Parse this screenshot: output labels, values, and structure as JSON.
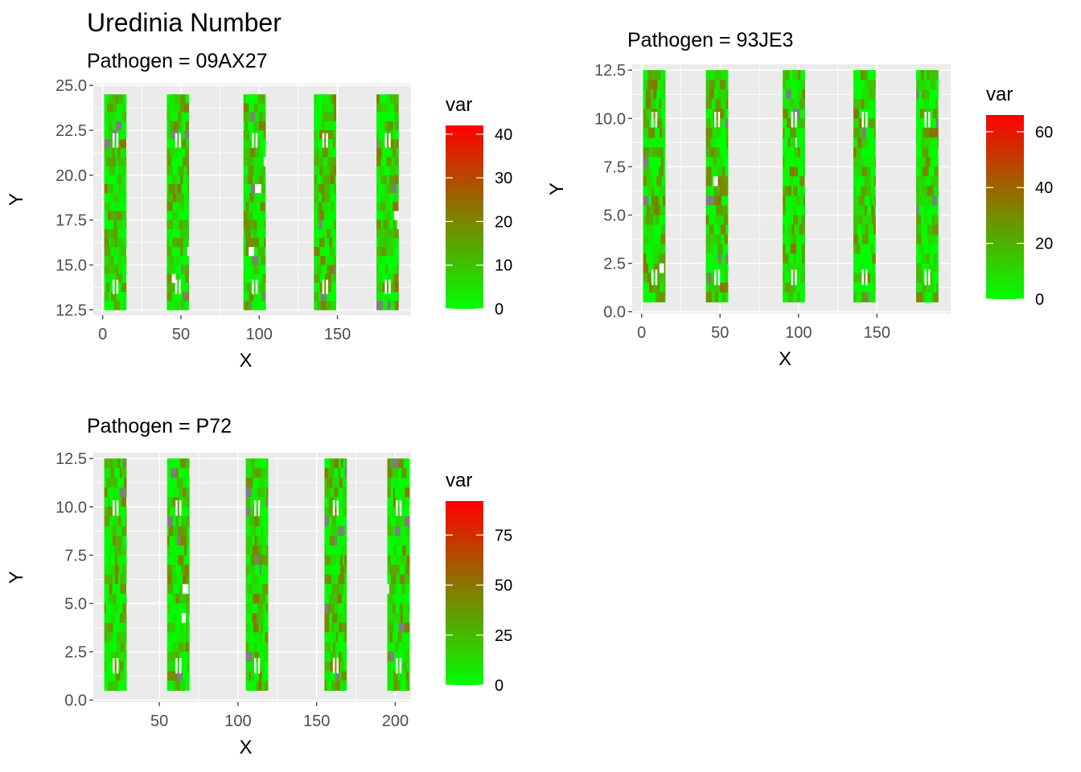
{
  "title": "Uredinia Number",
  "panel_bg": "#EBEBEB",
  "grid_color": "#FFFFFF",
  "tick_color": "#4D4D4D",
  "missing_color": "#7F7F7F",
  "gradient": [
    "#00FF00",
    "#FF0000"
  ],
  "chart_data": [
    {
      "type": "heatmap",
      "title": "Pathogen = 09AX27",
      "xlabel": "X",
      "ylabel": "Y",
      "xlim": [
        -6,
        197
      ],
      "ylim": [
        12.2,
        25.1
      ],
      "xticks": [
        0,
        50,
        100,
        150
      ],
      "xtick_labels": [
        "0",
        "50",
        "100",
        "150"
      ],
      "yticks": [
        12.5,
        15.0,
        17.5,
        20.0,
        22.5,
        25.0
      ],
      "ytick_labels": [
        "12.5",
        "15.0",
        "17.5",
        "20.0",
        "22.5",
        "25.0"
      ],
      "x_sections": [
        [
          1,
          15
        ],
        [
          41,
          55
        ],
        [
          90,
          104
        ],
        [
          135,
          149
        ],
        [
          175,
          189
        ]
      ],
      "y_range": [
        12.5,
        24.5
      ],
      "legend": {
        "title": "var",
        "limits": [
          0,
          42
        ],
        "breaks": [
          0,
          10,
          20,
          30,
          40
        ],
        "labels": [
          "0",
          "10",
          "20",
          "30",
          "40"
        ]
      }
    },
    {
      "type": "heatmap",
      "title": "Pathogen = 93JE3",
      "xlabel": "X",
      "ylabel": "Y",
      "xlim": [
        -6,
        197
      ],
      "ylim": [
        -0.1,
        12.8
      ],
      "xticks": [
        0,
        50,
        100,
        150
      ],
      "xtick_labels": [
        "0",
        "50",
        "100",
        "150"
      ],
      "yticks": [
        0.0,
        2.5,
        5.0,
        7.5,
        10.0,
        12.5
      ],
      "ytick_labels": [
        "0.0",
        "2.5",
        "5.0",
        "7.5",
        "10.0",
        "12.5"
      ],
      "x_sections": [
        [
          1,
          15
        ],
        [
          41,
          55
        ],
        [
          90,
          104
        ],
        [
          135,
          149
        ],
        [
          175,
          189
        ]
      ],
      "y_range": [
        0.5,
        12.5
      ],
      "legend": {
        "title": "var",
        "limits": [
          0,
          66
        ],
        "breaks": [
          0,
          20,
          40,
          60
        ],
        "labels": [
          "0",
          "20",
          "40",
          "60"
        ]
      }
    },
    {
      "type": "heatmap",
      "title": "Pathogen = P72",
      "xlabel": "X",
      "ylabel": "Y",
      "xlim": [
        8,
        210
      ],
      "ylim": [
        -0.1,
        12.8
      ],
      "xticks": [
        50,
        100,
        150,
        200
      ],
      "xtick_labels": [
        "50",
        "100",
        "150",
        "200"
      ],
      "yticks": [
        0.0,
        2.5,
        5.0,
        7.5,
        10.0,
        12.5
      ],
      "ytick_labels": [
        "0.0",
        "2.5",
        "5.0",
        "7.5",
        "10.0",
        "12.5"
      ],
      "x_sections": [
        [
          15,
          29
        ],
        [
          55,
          69
        ],
        [
          105,
          119
        ],
        [
          155,
          169
        ],
        [
          195,
          209
        ]
      ],
      "y_range": [
        0.5,
        12.5
      ],
      "legend": {
        "title": "var",
        "limits": [
          0,
          92
        ],
        "breaks": [
          0,
          25,
          50,
          75
        ],
        "labels": [
          "0",
          "25",
          "50",
          "75"
        ]
      }
    }
  ]
}
